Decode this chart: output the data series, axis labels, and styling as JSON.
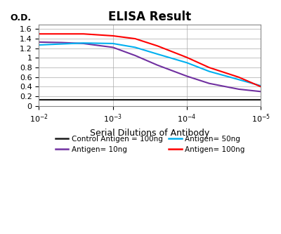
{
  "title": "ELISA Result",
  "ylabel": "O.D.",
  "xlabel": "Serial Dilutions of Antibody",
  "ylim": [
    0,
    1.7
  ],
  "yticks": [
    0,
    0.2,
    0.4,
    0.6,
    0.8,
    1.0,
    1.2,
    1.4,
    1.6
  ],
  "ytick_labels": [
    "0",
    "0.2",
    "0.4",
    "0.6",
    "0.8",
    "1",
    "1.2",
    "1.4",
    "1.6"
  ],
  "xtick_positions": [
    0.01,
    0.001,
    0.0001,
    1e-05
  ],
  "xtick_labels": [
    "10^-2",
    "10^-3",
    "10^-4",
    "10^-5"
  ],
  "series": [
    {
      "label": "Control Antigen = 100ng",
      "color": "#1a1a1a",
      "linewidth": 1.5,
      "x": [
        0.01,
        0.003,
        0.001,
        0.0003,
        0.0001,
        3e-05,
        1e-05
      ],
      "y": [
        0.13,
        0.13,
        0.13,
        0.13,
        0.13,
        0.13,
        0.13
      ]
    },
    {
      "label": "Antigen= 10ng",
      "color": "#7030A0",
      "linewidth": 1.5,
      "x": [
        0.01,
        0.005,
        0.0025,
        0.001,
        0.0005,
        0.00025,
        0.0001,
        5e-05,
        2e-05,
        1e-05
      ],
      "y": [
        1.33,
        1.32,
        1.3,
        1.22,
        1.05,
        0.85,
        0.62,
        0.47,
        0.35,
        0.3
      ]
    },
    {
      "label": "Antigen= 50ng",
      "color": "#00B0F0",
      "linewidth": 1.5,
      "x": [
        0.01,
        0.005,
        0.0025,
        0.001,
        0.0005,
        0.00025,
        0.0001,
        5e-05,
        2e-05,
        1e-05
      ],
      "y": [
        1.27,
        1.29,
        1.31,
        1.3,
        1.22,
        1.08,
        0.9,
        0.72,
        0.55,
        0.42
      ]
    },
    {
      "label": "Antigen= 100ng",
      "color": "#FF0000",
      "linewidth": 1.5,
      "x": [
        0.01,
        0.005,
        0.0025,
        0.001,
        0.0005,
        0.00025,
        0.0001,
        5e-05,
        2e-05,
        1e-05
      ],
      "y": [
        1.5,
        1.5,
        1.5,
        1.46,
        1.4,
        1.25,
        1.01,
        0.8,
        0.6,
        0.4
      ]
    }
  ],
  "legend_entries": [
    {
      "label": "Control Antigen = 100ng",
      "color": "#1a1a1a"
    },
    {
      "label": "Antigen= 10ng",
      "color": "#7030A0"
    },
    {
      "label": "Antigen= 50ng",
      "color": "#00B0F0"
    },
    {
      "label": "Antigen= 100ng",
      "color": "#FF0000"
    }
  ],
  "background_color": "#ffffff",
  "grid_color": "#aaaaaa",
  "title_fontsize": 12,
  "label_fontsize": 9,
  "tick_fontsize": 8,
  "legend_fontsize": 7.5
}
